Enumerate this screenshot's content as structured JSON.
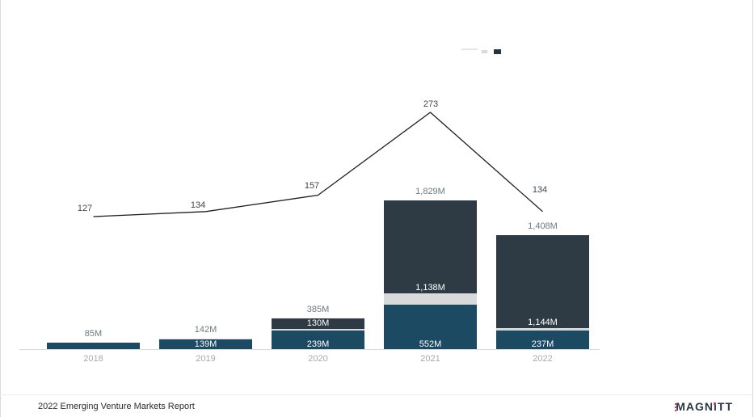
{
  "page": {
    "background": "#ffffff",
    "edge_border_color": "#d9d9d9"
  },
  "legend": {
    "line_swatch_color": "#e4e6e6",
    "gray_swatch_color": "#d8dada",
    "navy_swatch_color": "#243447"
  },
  "chart_data": {
    "type": "bar",
    "subtype": "stacked-bars-with-line-overlay",
    "title": "",
    "categories": [
      "2018",
      "2019",
      "2020",
      "2021",
      "2022"
    ],
    "series": [
      {
        "name": "bottom-segment",
        "color": "#1c4a62",
        "label_color": "#ffffff",
        "values": [
          85,
          139,
          239,
          552,
          237
        ],
        "labels": [
          "",
          "139M",
          "239M",
          "552M",
          "237M"
        ]
      },
      {
        "name": "middle-segment",
        "color": "#d8dada",
        "label_color": "#ffffff",
        "values": [
          0,
          3,
          16,
          139,
          27
        ],
        "labels": [
          "",
          "",
          "",
          "",
          ""
        ]
      },
      {
        "name": "top-segment",
        "color": "#2e3b45",
        "label_color": "#ffffff",
        "values": [
          0,
          0,
          130,
          1138,
          1144
        ],
        "labels": [
          "",
          "",
          "130M",
          "1,138M",
          "1,144M"
        ]
      }
    ],
    "totals": {
      "values": [
        85,
        142,
        385,
        1829,
        1408
      ],
      "labels": [
        "85M",
        "142M",
        "385M",
        "1,829M",
        "1,408M"
      ],
      "label_color": "#6e7a80"
    },
    "line": {
      "name": "count-line",
      "color": "#1f1f1f",
      "values": [
        127,
        134,
        157,
        273,
        134
      ],
      "labels": [
        "127",
        "134",
        "157",
        "273",
        "134"
      ],
      "label_color": "#3f464a"
    },
    "axis": {
      "baseline_color": "#d9d9d9",
      "category_label_color": "#a3abaf"
    },
    "grid": false,
    "legend_position": "top-right"
  },
  "footer": {
    "report_title": "2022 Emerging Venture Markets Report",
    "logo": {
      "text": "MAGNiTT",
      "part1": "MAGN",
      "part2": "i",
      "part3": "TT",
      "text_color": "#2b3847",
      "accent_color": "#e8374e"
    }
  }
}
